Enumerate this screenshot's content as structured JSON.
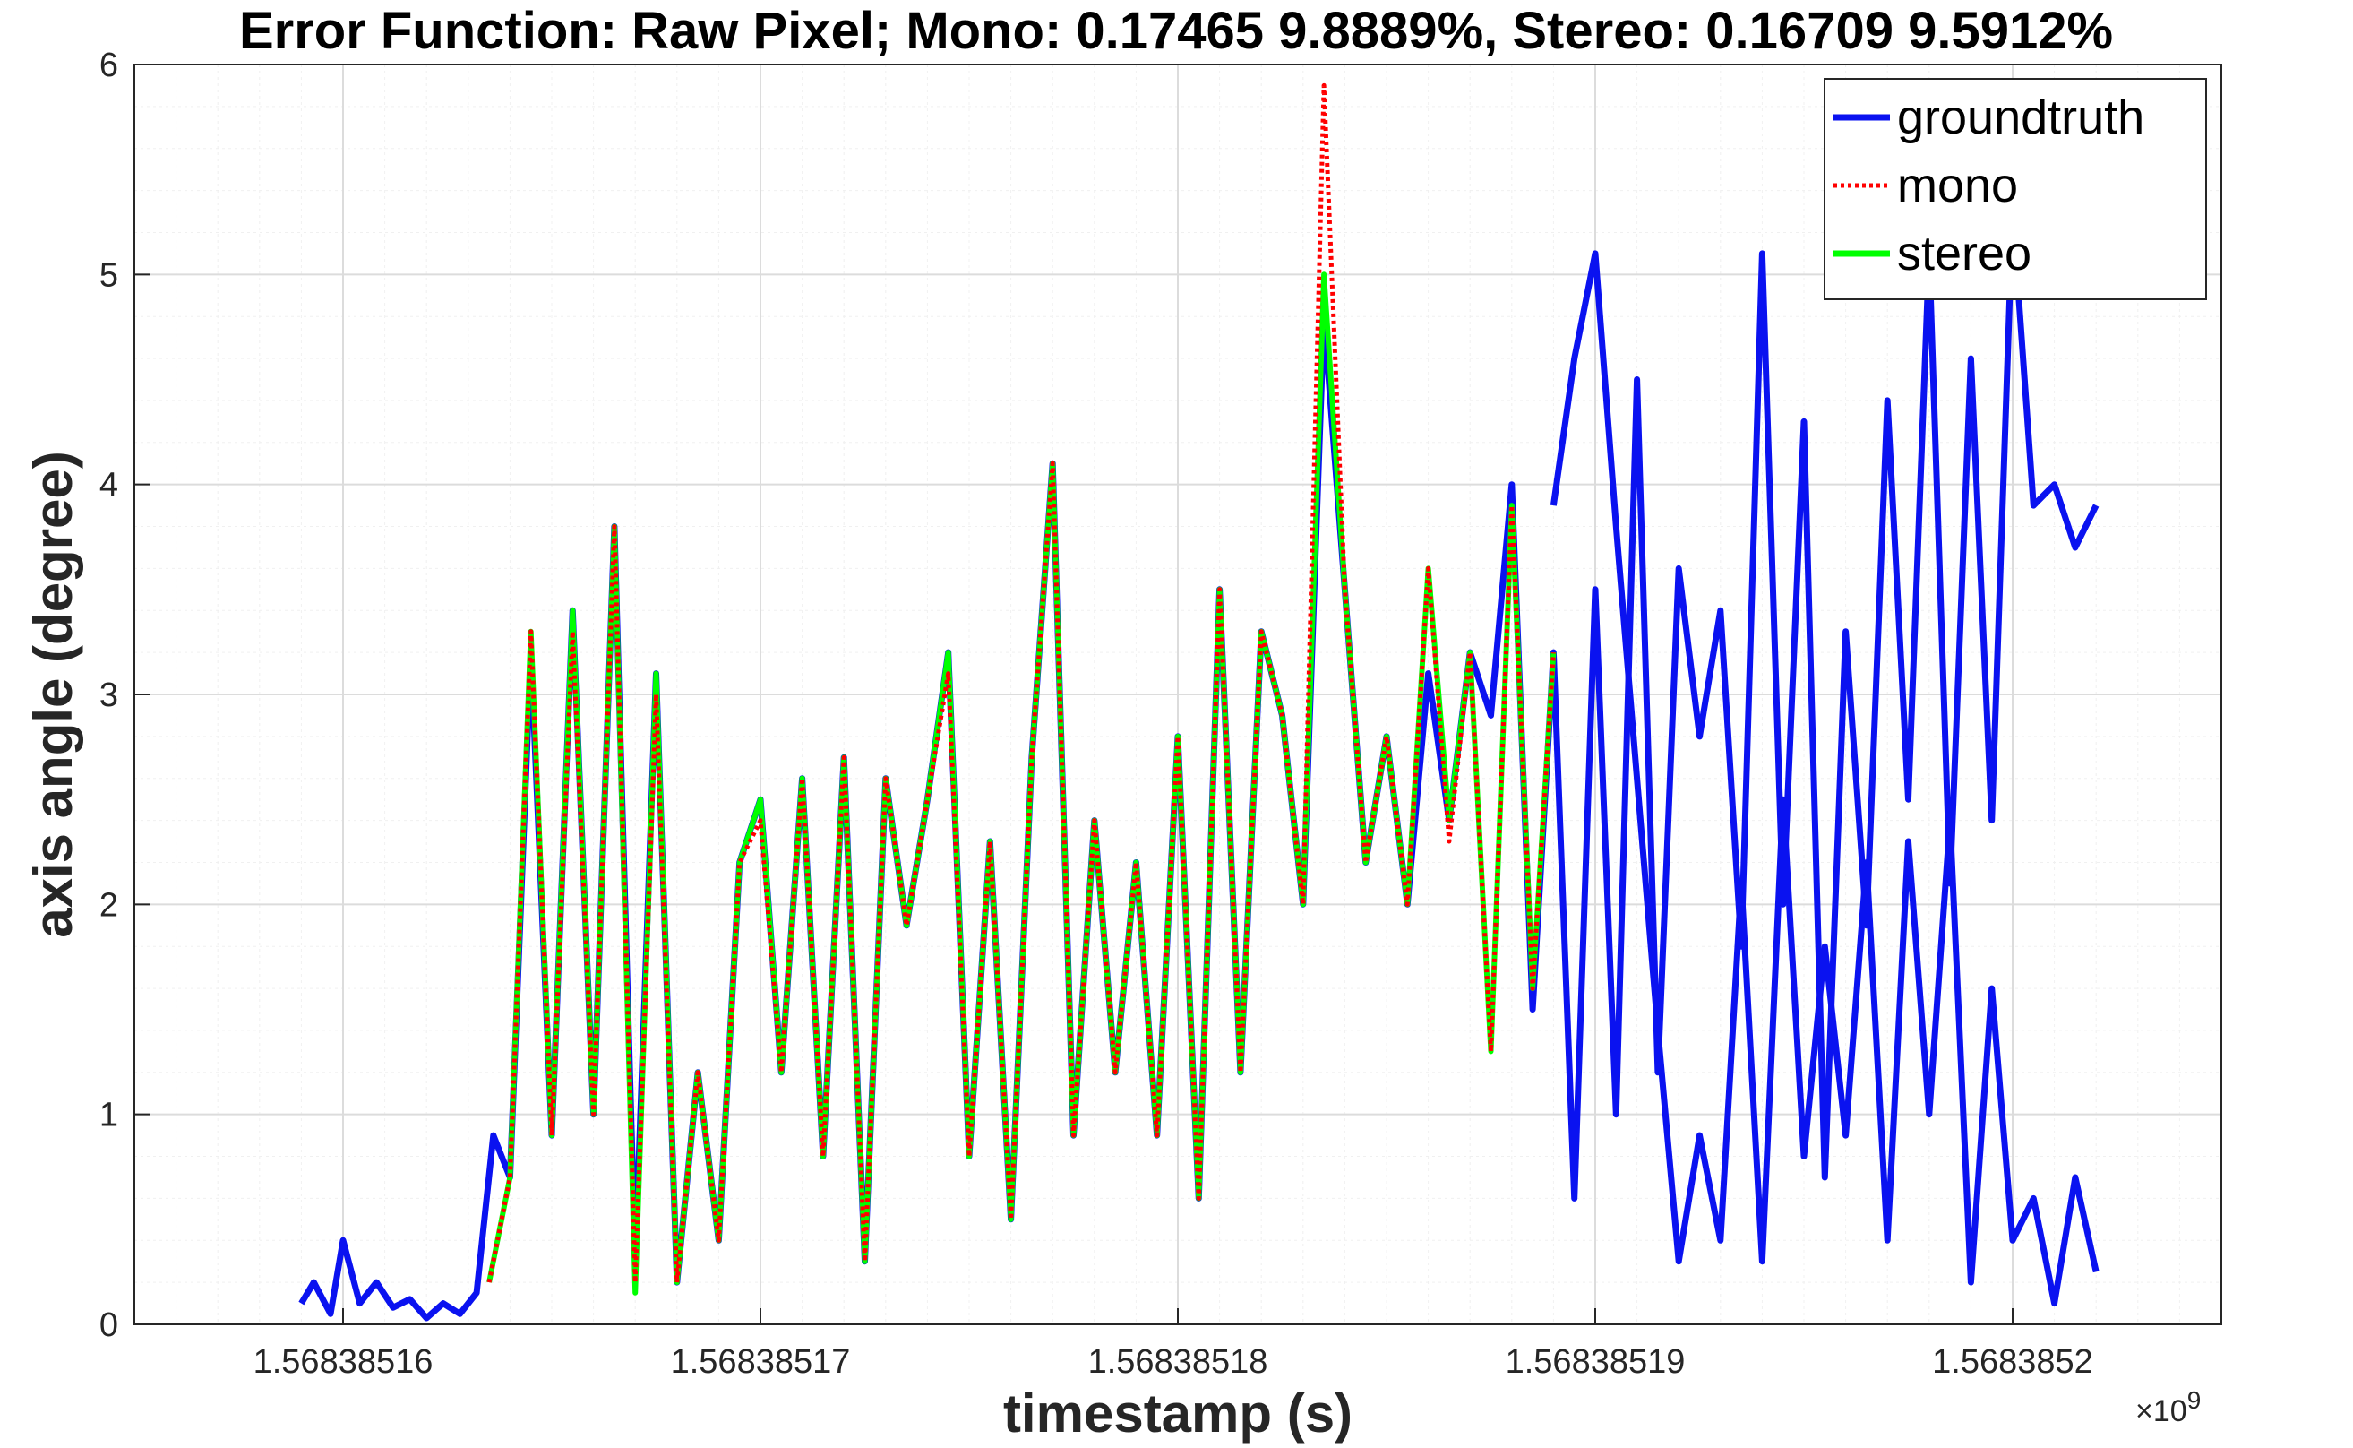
{
  "chart_data": {
    "type": "line",
    "title": "Error Function: Raw Pixel; Mono: 0.17465 9.8889%, Stereo: 0.16709 9.5912%",
    "xlabel": "timestamp (s)",
    "ylabel": "axis angle (degree)",
    "x_multiplier": "×10",
    "x_exponent": "9",
    "xlim": [
      1.568385155,
      1.568385205
    ],
    "ylim": [
      0,
      6
    ],
    "x_ticks": [
      1.56838516,
      1.56838517,
      1.56838518,
      1.56838519,
      1.5683852
    ],
    "x_tick_labels": [
      "1.56838516",
      "1.56838517",
      "1.56838518",
      "1.56838519",
      "1.5683852"
    ],
    "y_ticks": [
      0,
      1,
      2,
      3,
      4,
      5,
      6
    ],
    "y_tick_labels": [
      "0",
      "1",
      "2",
      "3",
      "4",
      "5",
      "6"
    ],
    "grid": true,
    "legend_position": "top-right",
    "series": [
      {
        "name": "groundtruth",
        "color": "#0a12f0",
        "style": "solid",
        "x": [
          1.568385159,
          1.5683851593,
          1.5683851597,
          1.56838516,
          1.5683851604,
          1.5683851608,
          1.5683851612,
          1.5683851616,
          1.568385162,
          1.5683851624,
          1.5683851628,
          1.5683851632,
          1.5683851636,
          1.568385164,
          1.5683851645,
          1.568385165,
          1.5683851655,
          1.568385166,
          1.5683851665,
          1.568385167,
          1.5683851675,
          1.568385168,
          1.5683851685,
          1.568385169,
          1.5683851695,
          1.56838517,
          1.5683851705,
          1.568385171,
          1.5683851715,
          1.568385172,
          1.5683851725,
          1.568385173,
          1.5683851735,
          1.568385174,
          1.5683851745,
          1.568385175,
          1.5683851755,
          1.568385176,
          1.5683851765,
          1.568385177,
          1.5683851775,
          1.568385178,
          1.5683851785,
          1.568385179,
          1.5683851795,
          1.56838518,
          1.5683851805,
          1.568385181,
          1.5683851815,
          1.568385182,
          1.5683851825,
          1.568385183,
          1.5683851835,
          1.568385184,
          1.5683851845,
          1.568385185,
          1.5683851855,
          1.568385186,
          1.5683851865,
          1.568385187,
          1.5683851875,
          1.568385188,
          1.5683851885,
          1.568385189,
          1.5683851895,
          1.56838519,
          1.5683851905,
          1.568385191,
          1.5683851915,
          1.568385192,
          1.5683851925,
          1.568385193,
          1.5683851935,
          1.568385194,
          1.5683851945,
          1.568385195,
          1.5683851955,
          1.568385196,
          1.5683851965,
          1.568385197,
          1.5683851975,
          1.568385198,
          1.5683851985,
          1.568385199,
          1.5683851995,
          1.5683852,
          1.5683852005,
          1.568385201,
          1.5683852015,
          1.568385202
        ],
        "y": [
          0.1,
          0.2,
          0.05,
          0.4,
          0.1,
          0.2,
          0.08,
          0.12,
          0.03,
          0.1,
          0.05,
          0.15,
          0.9,
          0.7,
          3.2,
          0.9,
          3.4,
          1.0,
          3.8,
          0.3,
          3.1,
          0.2,
          1.2,
          0.4,
          2.2,
          2.5,
          1.2,
          2.6,
          0.8,
          2.7,
          0.3,
          2.6,
          1.9,
          2.5,
          3.2,
          0.8,
          2.3,
          0.5,
          2.7,
          4.1,
          0.9,
          2.4,
          1.2,
          2.2,
          0.9,
          2.8,
          0.6,
          3.5,
          1.2,
          3.3,
          2.9,
          2.0,
          4.8,
          3.5,
          2.2,
          2.8,
          2.0,
          3.1,
          2.4,
          3.2,
          2.9,
          4.0,
          1.5,
          3.2,
          0.6,
          3.5,
          1.0,
          4.5,
          1.2,
          3.6,
          2.8,
          3.4,
          1.8,
          5.1,
          2.0,
          4.3,
          0.7,
          3.3,
          1.9,
          4.4,
          2.5,
          5.1,
          2.1,
          4.6,
          2.4,
          5.3,
          3.9,
          4.0,
          3.7,
          3.9
        ],
        "x2": [
          1.568385189,
          1.5683851895,
          1.56838519,
          1.5683851905,
          1.568385191,
          1.5683851915,
          1.568385192,
          1.5683851925,
          1.568385193,
          1.5683851935,
          1.568385194,
          1.5683851945,
          1.568385195,
          1.5683851955,
          1.568385196,
          1.5683851965,
          1.568385197,
          1.5683851975,
          1.568385198,
          1.5683851985,
          1.568385199,
          1.5683851995,
          1.5683852,
          1.5683852005,
          1.568385201,
          1.5683852015,
          1.568385202
        ],
        "y2": [
          3.9,
          4.6,
          5.1,
          3.8,
          2.6,
          1.4,
          0.3,
          0.9,
          0.4,
          2.1,
          0.3,
          2.5,
          0.8,
          1.8,
          0.9,
          2.2,
          0.4,
          2.3,
          1.0,
          2.4,
          0.2,
          1.6,
          0.4,
          0.6,
          0.1,
          0.7,
          0.25
        ]
      },
      {
        "name": "mono",
        "color": "#ff0000",
        "style": "dotted",
        "x": [
          1.5683851635,
          1.568385164,
          1.5683851645,
          1.568385165,
          1.5683851655,
          1.568385166,
          1.5683851665,
          1.568385167,
          1.5683851675,
          1.568385168,
          1.5683851685,
          1.568385169,
          1.5683851695,
          1.56838517,
          1.5683851705,
          1.568385171,
          1.5683851715,
          1.568385172,
          1.5683851725,
          1.568385173,
          1.5683851735,
          1.568385174,
          1.5683851745,
          1.568385175,
          1.5683851755,
          1.568385176,
          1.5683851765,
          1.568385177,
          1.5683851775,
          1.568385178,
          1.5683851785,
          1.568385179,
          1.5683851795,
          1.56838518,
          1.5683851805,
          1.568385181,
          1.5683851815,
          1.568385182,
          1.5683851825,
          1.568385183,
          1.5683851835,
          1.568385184,
          1.5683851845,
          1.568385185,
          1.5683851855,
          1.568385186,
          1.5683851865,
          1.568385187,
          1.5683851875,
          1.568385188,
          1.5683851885,
          1.568385189
        ],
        "y": [
          0.2,
          0.7,
          3.3,
          0.9,
          3.3,
          1.0,
          3.8,
          0.2,
          3.0,
          0.2,
          1.2,
          0.4,
          2.2,
          2.4,
          1.2,
          2.6,
          0.8,
          2.7,
          0.3,
          2.6,
          1.9,
          2.5,
          3.1,
          0.8,
          2.3,
          0.5,
          2.7,
          4.1,
          0.9,
          2.4,
          1.2,
          2.2,
          0.9,
          2.8,
          0.6,
          3.5,
          1.2,
          3.3,
          2.9,
          2.0,
          5.9,
          3.5,
          2.2,
          2.8,
          2.0,
          3.6,
          2.3,
          3.2,
          1.3,
          3.9,
          1.6,
          3.2
        ]
      },
      {
        "name": "stereo",
        "color": "#00ff00",
        "style": "solid",
        "x": [
          1.5683851635,
          1.568385164,
          1.5683851645,
          1.568385165,
          1.5683851655,
          1.568385166,
          1.5683851665,
          1.568385167,
          1.5683851675,
          1.568385168,
          1.5683851685,
          1.568385169,
          1.5683851695,
          1.56838517,
          1.5683851705,
          1.568385171,
          1.5683851715,
          1.568385172,
          1.5683851725,
          1.568385173,
          1.5683851735,
          1.568385174,
          1.5683851745,
          1.568385175,
          1.5683851755,
          1.568385176,
          1.5683851765,
          1.568385177,
          1.5683851775,
          1.568385178,
          1.5683851785,
          1.568385179,
          1.5683851795,
          1.56838518,
          1.5683851805,
          1.568385181,
          1.5683851815,
          1.568385182,
          1.5683851825,
          1.568385183,
          1.5683851835,
          1.568385184,
          1.5683851845,
          1.568385185,
          1.5683851855,
          1.568385186,
          1.5683851865,
          1.568385187,
          1.5683851875,
          1.568385188,
          1.5683851885,
          1.568385189
        ],
        "y": [
          0.2,
          0.7,
          3.3,
          0.9,
          3.4,
          1.0,
          3.8,
          0.15,
          3.1,
          0.2,
          1.2,
          0.4,
          2.2,
          2.5,
          1.2,
          2.6,
          0.8,
          2.7,
          0.3,
          2.6,
          1.9,
          2.5,
          3.2,
          0.8,
          2.3,
          0.5,
          2.7,
          4.1,
          0.9,
          2.4,
          1.2,
          2.2,
          0.9,
          2.8,
          0.6,
          3.5,
          1.2,
          3.3,
          2.9,
          2.0,
          5.0,
          3.5,
          2.2,
          2.8,
          2.0,
          3.6,
          2.4,
          3.2,
          1.3,
          3.9,
          1.6,
          3.2
        ]
      }
    ]
  }
}
